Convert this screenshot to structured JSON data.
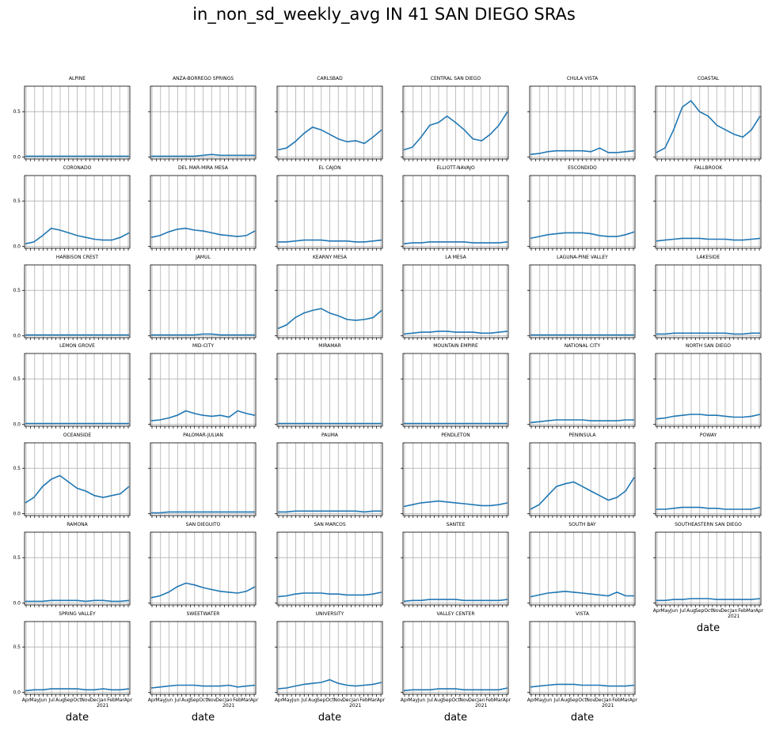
{
  "title": "in_non_sd_weekly_avg IN 41 SAN DIEGO SRAs",
  "chart_data": {
    "type": "line",
    "layout": {
      "rows": 7,
      "cols": 6
    },
    "sharey": true,
    "ylim": [
      -0.02,
      0.78
    ],
    "yticks": [
      "0.0",
      "0.5"
    ],
    "xlabel": "date",
    "xtick_labels": [
      "Apr",
      "May",
      "Jun",
      "Jul",
      "Aug",
      "Sep",
      "Oct",
      "Nov",
      "Dec",
      "Jan",
      "Feb",
      "Mar",
      "Apr"
    ],
    "year_label": "2021",
    "grid": true,
    "line_color": "#1f77b4",
    "panels": [
      {
        "name": "ALPINE",
        "values": [
          0.01,
          0.01,
          0.01,
          0.01,
          0.01,
          0.01,
          0.01,
          0.01,
          0.01,
          0.01,
          0.01,
          0.01,
          0.01
        ]
      },
      {
        "name": "ANZA-BORREGO SPRINGS",
        "values": [
          0.01,
          0.01,
          0.01,
          0.01,
          0.01,
          0.01,
          0.02,
          0.03,
          0.02,
          0.02,
          0.02,
          0.02,
          0.02
        ]
      },
      {
        "name": "CARLSBAD",
        "values": [
          0.08,
          0.1,
          0.17,
          0.26,
          0.33,
          0.3,
          0.25,
          0.2,
          0.17,
          0.18,
          0.15,
          0.22,
          0.3
        ]
      },
      {
        "name": "CENTRAL SAN DIEGO",
        "values": [
          0.08,
          0.11,
          0.22,
          0.35,
          0.38,
          0.45,
          0.38,
          0.3,
          0.2,
          0.18,
          0.25,
          0.35,
          0.5
        ]
      },
      {
        "name": "CHULA VISTA",
        "values": [
          0.03,
          0.04,
          0.06,
          0.07,
          0.07,
          0.07,
          0.07,
          0.06,
          0.1,
          0.05,
          0.05,
          0.06,
          0.07
        ]
      },
      {
        "name": "COASTAL",
        "values": [
          0.05,
          0.1,
          0.3,
          0.55,
          0.62,
          0.5,
          0.45,
          0.35,
          0.3,
          0.25,
          0.22,
          0.3,
          0.45
        ]
      },
      {
        "name": "CORONADO",
        "values": [
          0.03,
          0.05,
          0.12,
          0.2,
          0.18,
          0.15,
          0.12,
          0.1,
          0.08,
          0.07,
          0.07,
          0.1,
          0.15
        ]
      },
      {
        "name": "DEL MAR-MIRA MESA",
        "values": [
          0.1,
          0.12,
          0.16,
          0.19,
          0.2,
          0.18,
          0.17,
          0.15,
          0.13,
          0.12,
          0.11,
          0.12,
          0.17
        ]
      },
      {
        "name": "EL CAJON",
        "values": [
          0.05,
          0.05,
          0.06,
          0.07,
          0.07,
          0.07,
          0.06,
          0.06,
          0.06,
          0.05,
          0.05,
          0.06,
          0.07
        ]
      },
      {
        "name": "ELLIOTT-NAVAJO",
        "values": [
          0.03,
          0.04,
          0.04,
          0.05,
          0.05,
          0.05,
          0.05,
          0.05,
          0.04,
          0.04,
          0.04,
          0.04,
          0.05
        ]
      },
      {
        "name": "ESCONDIDO",
        "values": [
          0.09,
          0.11,
          0.13,
          0.14,
          0.15,
          0.15,
          0.15,
          0.14,
          0.12,
          0.11,
          0.11,
          0.13,
          0.16
        ]
      },
      {
        "name": "FALLBROOK",
        "values": [
          0.06,
          0.07,
          0.08,
          0.09,
          0.09,
          0.09,
          0.08,
          0.08,
          0.08,
          0.07,
          0.07,
          0.08,
          0.09
        ]
      },
      {
        "name": "HARBISON CREST",
        "values": [
          0.01,
          0.01,
          0.01,
          0.01,
          0.01,
          0.01,
          0.01,
          0.01,
          0.01,
          0.01,
          0.01,
          0.01,
          0.01
        ]
      },
      {
        "name": "JAMUL",
        "values": [
          0.01,
          0.01,
          0.01,
          0.01,
          0.01,
          0.01,
          0.02,
          0.02,
          0.01,
          0.01,
          0.01,
          0.01,
          0.01
        ]
      },
      {
        "name": "KEARNY MESA",
        "values": [
          0.08,
          0.12,
          0.2,
          0.25,
          0.28,
          0.3,
          0.25,
          0.22,
          0.18,
          0.17,
          0.18,
          0.2,
          0.28
        ]
      },
      {
        "name": "LA MESA",
        "values": [
          0.02,
          0.03,
          0.04,
          0.04,
          0.05,
          0.05,
          0.04,
          0.04,
          0.04,
          0.03,
          0.03,
          0.04,
          0.05
        ]
      },
      {
        "name": "LAGUNA-PINE VALLEY",
        "values": [
          0.01,
          0.01,
          0.01,
          0.01,
          0.01,
          0.01,
          0.01,
          0.01,
          0.01,
          0.01,
          0.01,
          0.01,
          0.01
        ]
      },
      {
        "name": "LAKESIDE",
        "values": [
          0.02,
          0.02,
          0.03,
          0.03,
          0.03,
          0.03,
          0.03,
          0.03,
          0.03,
          0.02,
          0.02,
          0.03,
          0.03
        ]
      },
      {
        "name": "LEMON GROVE",
        "values": [
          0.01,
          0.01,
          0.01,
          0.01,
          0.01,
          0.01,
          0.01,
          0.01,
          0.01,
          0.01,
          0.01,
          0.01,
          0.01
        ]
      },
      {
        "name": "MID-CITY",
        "values": [
          0.04,
          0.05,
          0.07,
          0.1,
          0.15,
          0.12,
          0.1,
          0.09,
          0.1,
          0.08,
          0.15,
          0.12,
          0.1
        ]
      },
      {
        "name": "MIRAMAR",
        "values": [
          0.01,
          0.01,
          0.01,
          0.01,
          0.01,
          0.01,
          0.01,
          0.01,
          0.01,
          0.01,
          0.01,
          0.01,
          0.01
        ]
      },
      {
        "name": "MOUNTAIN EMPIRE",
        "values": [
          0.01,
          0.01,
          0.01,
          0.01,
          0.01,
          0.01,
          0.01,
          0.01,
          0.01,
          0.01,
          0.01,
          0.01,
          0.01
        ]
      },
      {
        "name": "NATIONAL CITY",
        "values": [
          0.02,
          0.03,
          0.04,
          0.05,
          0.05,
          0.05,
          0.05,
          0.04,
          0.04,
          0.04,
          0.04,
          0.05,
          0.05
        ]
      },
      {
        "name": "NORTH SAN DIEGO",
        "values": [
          0.06,
          0.07,
          0.09,
          0.1,
          0.11,
          0.11,
          0.1,
          0.1,
          0.09,
          0.08,
          0.08,
          0.09,
          0.11
        ]
      },
      {
        "name": "OCEANSIDE",
        "values": [
          0.12,
          0.18,
          0.3,
          0.38,
          0.42,
          0.35,
          0.28,
          0.25,
          0.2,
          0.18,
          0.2,
          0.22,
          0.3
        ]
      },
      {
        "name": "PALOMAR-JULIAN",
        "values": [
          0.01,
          0.01,
          0.02,
          0.02,
          0.02,
          0.02,
          0.02,
          0.02,
          0.02,
          0.02,
          0.02,
          0.02,
          0.02
        ]
      },
      {
        "name": "PAUMA",
        "values": [
          0.02,
          0.02,
          0.03,
          0.03,
          0.03,
          0.03,
          0.03,
          0.03,
          0.03,
          0.03,
          0.02,
          0.03,
          0.03
        ]
      },
      {
        "name": "PENDLETON",
        "values": [
          0.08,
          0.1,
          0.12,
          0.13,
          0.14,
          0.13,
          0.12,
          0.11,
          0.1,
          0.09,
          0.09,
          0.1,
          0.12
        ]
      },
      {
        "name": "PENINSULA",
        "values": [
          0.05,
          0.1,
          0.2,
          0.3,
          0.33,
          0.35,
          0.3,
          0.25,
          0.2,
          0.15,
          0.18,
          0.25,
          0.4
        ]
      },
      {
        "name": "POWAY",
        "values": [
          0.05,
          0.05,
          0.06,
          0.07,
          0.07,
          0.07,
          0.06,
          0.06,
          0.05,
          0.05,
          0.05,
          0.05,
          0.07
        ]
      },
      {
        "name": "RAMONA",
        "values": [
          0.02,
          0.02,
          0.02,
          0.03,
          0.03,
          0.03,
          0.03,
          0.02,
          0.03,
          0.03,
          0.02,
          0.02,
          0.03
        ]
      },
      {
        "name": "SAN DIEGUITO",
        "values": [
          0.06,
          0.08,
          0.12,
          0.18,
          0.22,
          0.2,
          0.17,
          0.15,
          0.13,
          0.12,
          0.11,
          0.13,
          0.18
        ]
      },
      {
        "name": "SAN MARCOS",
        "values": [
          0.07,
          0.08,
          0.1,
          0.11,
          0.11,
          0.11,
          0.1,
          0.1,
          0.09,
          0.09,
          0.09,
          0.1,
          0.12
        ]
      },
      {
        "name": "SANTEE",
        "values": [
          0.02,
          0.03,
          0.03,
          0.04,
          0.04,
          0.04,
          0.04,
          0.03,
          0.03,
          0.03,
          0.03,
          0.03,
          0.04
        ]
      },
      {
        "name": "SOUTH BAY",
        "values": [
          0.07,
          0.09,
          0.11,
          0.12,
          0.13,
          0.12,
          0.11,
          0.1,
          0.09,
          0.08,
          0.12,
          0.08,
          0.08
        ]
      },
      {
        "name": "SOUTHEASTERN SAN DIEGO",
        "values": [
          0.03,
          0.03,
          0.04,
          0.04,
          0.05,
          0.05,
          0.05,
          0.04,
          0.04,
          0.04,
          0.04,
          0.04,
          0.05
        ]
      },
      {
        "name": "SPRING VALLEY",
        "values": [
          0.02,
          0.03,
          0.03,
          0.04,
          0.04,
          0.04,
          0.04,
          0.03,
          0.03,
          0.04,
          0.03,
          0.03,
          0.04
        ]
      },
      {
        "name": "SWEETWATER",
        "values": [
          0.05,
          0.06,
          0.07,
          0.08,
          0.08,
          0.08,
          0.07,
          0.07,
          0.07,
          0.08,
          0.06,
          0.07,
          0.08
        ]
      },
      {
        "name": "UNIVERSITY",
        "values": [
          0.04,
          0.05,
          0.07,
          0.09,
          0.1,
          0.11,
          0.14,
          0.1,
          0.08,
          0.07,
          0.08,
          0.09,
          0.11
        ]
      },
      {
        "name": "VALLEY CENTER",
        "values": [
          0.02,
          0.03,
          0.03,
          0.03,
          0.04,
          0.04,
          0.04,
          0.03,
          0.03,
          0.03,
          0.03,
          0.03,
          0.05
        ]
      },
      {
        "name": "VISTA",
        "values": [
          0.06,
          0.07,
          0.08,
          0.09,
          0.09,
          0.09,
          0.08,
          0.08,
          0.08,
          0.07,
          0.07,
          0.07,
          0.08
        ]
      }
    ]
  }
}
